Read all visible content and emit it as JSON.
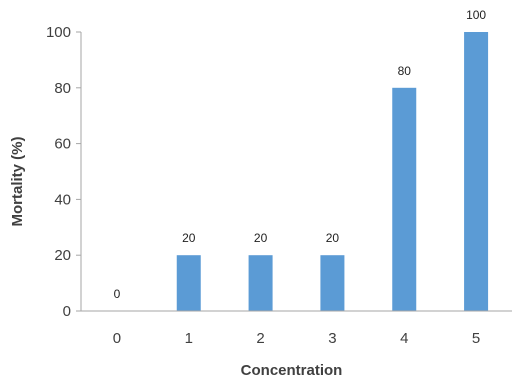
{
  "chart_data": {
    "type": "bar",
    "title": "",
    "xlabel": "Concentration",
    "ylabel": "Mortality (%)",
    "categories": [
      "0",
      "1",
      "2",
      "3",
      "4",
      "5"
    ],
    "values": [
      0,
      20,
      20,
      20,
      80,
      100
    ],
    "ylim": [
      0,
      100
    ],
    "yticks": [
      0,
      20,
      40,
      60,
      80,
      100
    ],
    "bar_color": "#5B9BD5",
    "data_labels": true,
    "grid": false,
    "legend": "none"
  }
}
